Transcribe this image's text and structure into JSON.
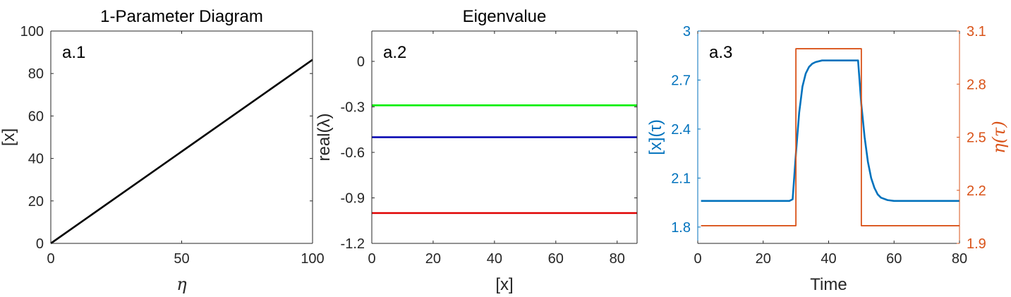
{
  "chart_data": [
    {
      "type": "line",
      "panel_label": "a.1",
      "title": "1-Parameter Diagram",
      "xlabel": "η",
      "ylabel": "[x]",
      "xlim": [
        0,
        100
      ],
      "ylim": [
        0,
        100
      ],
      "xticks": [
        0,
        50,
        100
      ],
      "yticks": [
        0,
        20,
        40,
        60,
        80,
        100
      ],
      "grid": false,
      "series": [
        {
          "color": "#000000",
          "x": [
            0,
            100
          ],
          "y": [
            0,
            86.5
          ]
        }
      ]
    },
    {
      "type": "line",
      "panel_label": "a.2",
      "title": "Eigenvalue",
      "xlabel": "[x]",
      "ylabel": "real(λ)",
      "xlim": [
        0,
        86.5
      ],
      "ylim": [
        -1.2,
        0.2
      ],
      "xticks": [
        0,
        20,
        40,
        60,
        80
      ],
      "yticks": [
        0,
        -0.3,
        -0.6,
        -0.9,
        -1.2
      ],
      "ytick_labels": [
        "0",
        "-0.3",
        "-0.6",
        "-0.9",
        "-1.2"
      ],
      "grid": false,
      "series": [
        {
          "color": "#00ee00",
          "x": [
            0,
            86.5
          ],
          "y": [
            -0.29,
            -0.29
          ]
        },
        {
          "color": "#0000b0",
          "x": [
            0,
            86.5
          ],
          "y": [
            -0.5,
            -0.5
          ]
        },
        {
          "color": "#e00000",
          "x": [
            0,
            86.5
          ],
          "y": [
            -1.0,
            -1.0
          ]
        }
      ]
    },
    {
      "type": "line",
      "panel_label": "a.3",
      "title": "",
      "xlabel": "Time",
      "ylabel": "[x](τ)",
      "ylabel_right": "η(τ)",
      "xlim": [
        0,
        80
      ],
      "ylim": [
        1.7,
        3.0
      ],
      "ylim_right": [
        1.9,
        3.1
      ],
      "xticks": [
        0,
        20,
        40,
        60,
        80
      ],
      "yticks": [
        1.8,
        2.1,
        2.4,
        2.7,
        3.0
      ],
      "ytick_labels": [
        "1.8",
        "2.1",
        "2.4",
        "2.7",
        "3"
      ],
      "yticks_right": [
        1.9,
        2.2,
        2.5,
        2.8,
        3.1
      ],
      "ytick_labels_right": [
        "1.9",
        "2.2",
        "2.5",
        "2.8",
        "3.1"
      ],
      "left_axis_color": "#0072bd",
      "right_axis_color": "#d95319",
      "grid": false,
      "series": [
        {
          "axis": "left",
          "color": "#0072bd",
          "x": [
            1,
            28,
            29,
            30,
            31,
            32,
            33,
            34,
            35,
            36,
            38,
            40,
            45,
            48,
            49,
            50,
            51,
            52,
            53,
            54,
            55,
            56,
            58,
            60,
            70,
            80
          ],
          "y": [
            1.96,
            1.96,
            1.97,
            2.25,
            2.5,
            2.66,
            2.74,
            2.78,
            2.8,
            2.81,
            2.82,
            2.82,
            2.82,
            2.82,
            2.82,
            2.55,
            2.35,
            2.2,
            2.1,
            2.04,
            2.0,
            1.98,
            1.965,
            1.96,
            1.96,
            1.96
          ]
        },
        {
          "axis": "right",
          "color": "#d95319",
          "x": [
            1,
            30,
            30,
            50,
            50,
            80
          ],
          "y": [
            2.0,
            2.0,
            3.0,
            3.0,
            2.0,
            2.0
          ]
        }
      ]
    }
  ]
}
